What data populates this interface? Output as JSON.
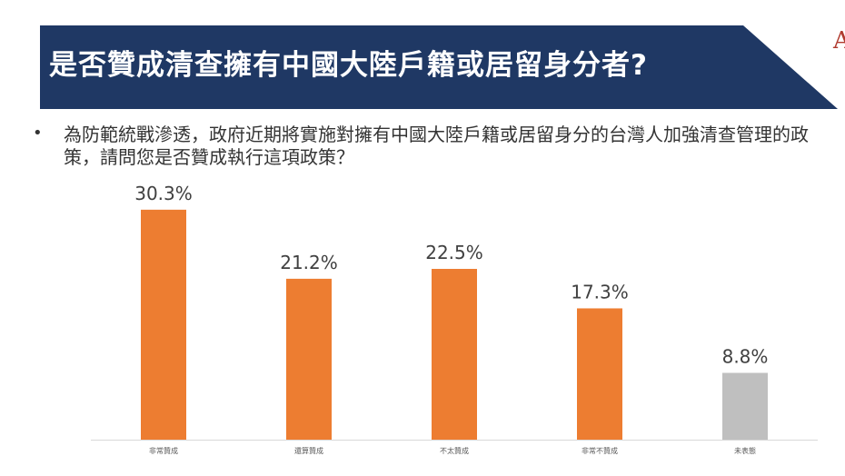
{
  "header": {
    "title": "是否贊成清查擁有中國大陸戶籍或居留身分者?",
    "corner_mark": "A",
    "banner_color": "#1f3864"
  },
  "question": {
    "bullet": "•",
    "text": "為防範統戰滲透，政府近期將實施對擁有中國大陸戶籍或居留身分的台灣人加強清查管理的政策，請問您是否贊成執行這項政策？"
  },
  "chart_data": {
    "type": "bar",
    "categories": [
      "非常贊成",
      "還算贊成",
      "不太贊成",
      "非常不贊成",
      "未表態"
    ],
    "values": [
      30.3,
      21.2,
      22.5,
      17.3,
      8.8
    ],
    "value_labels": [
      "30.3%",
      "21.2%",
      "22.5%",
      "17.3%",
      "8.8%"
    ],
    "colors": [
      "#ed7d31",
      "#ed7d31",
      "#ed7d31",
      "#ed7d31",
      "#bfbfbf"
    ],
    "ylim": [
      0,
      31
    ],
    "grid": false,
    "legend": "none"
  }
}
